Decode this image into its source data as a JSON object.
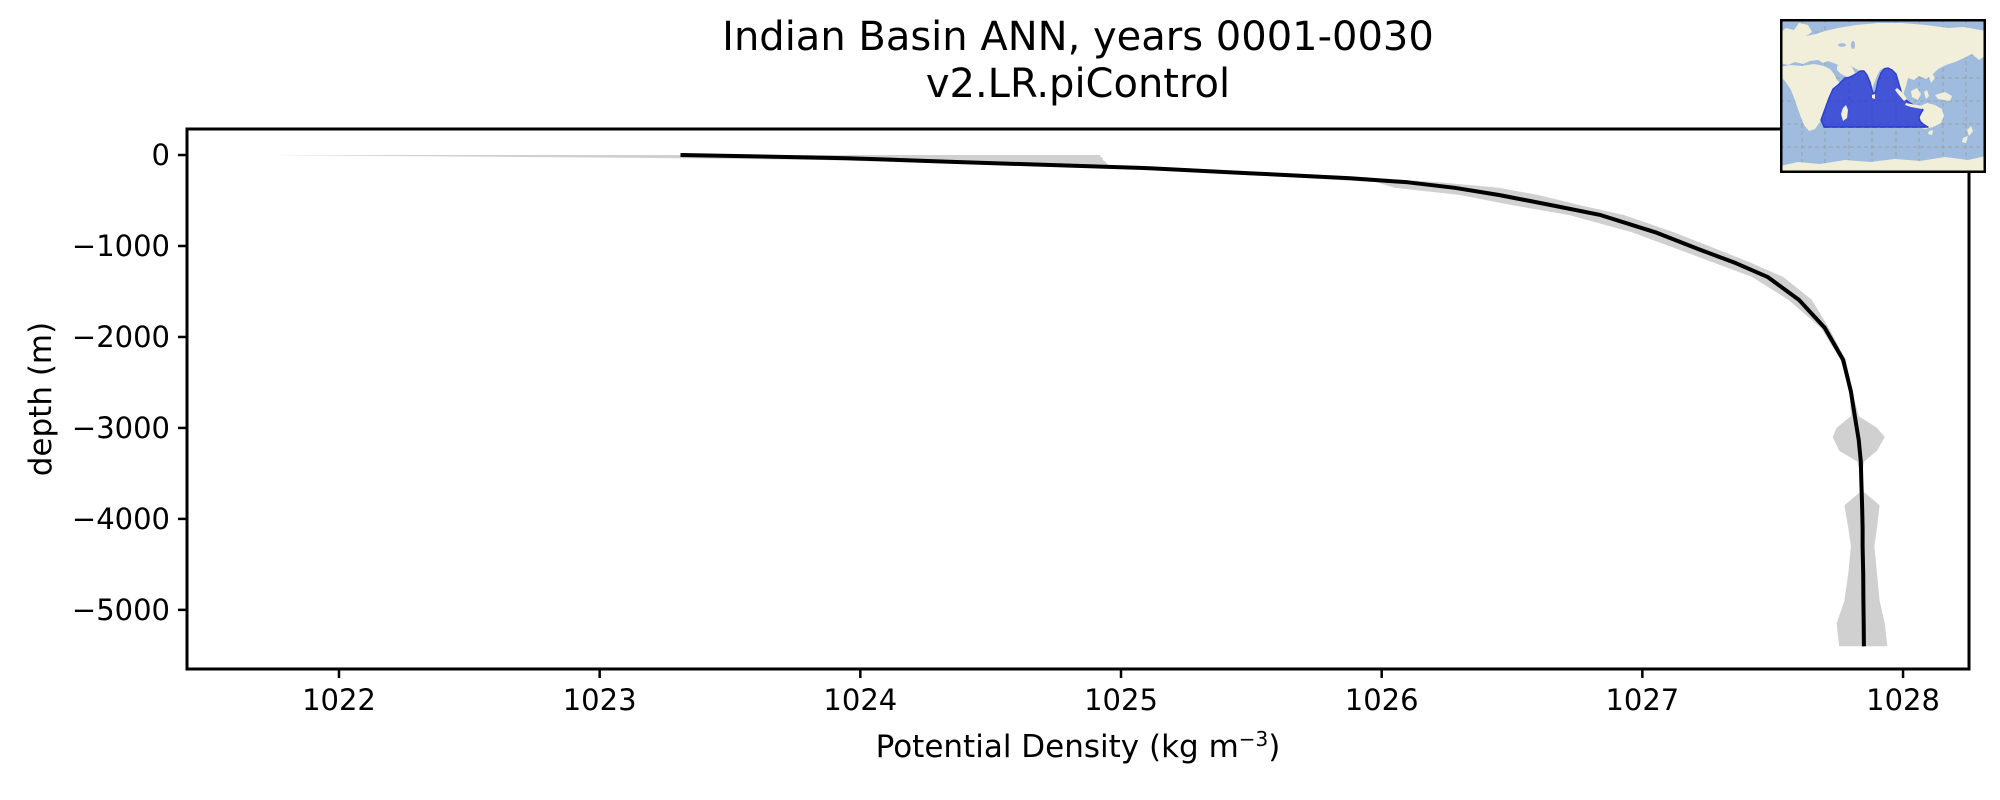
{
  "chart_data": {
    "type": "line",
    "title_line1": "Indian Basin ANN, years 0001-0030",
    "title_line2": "v2.LR.piControl",
    "xlabel_prefix": "Potential Density (kg m",
    "xlabel_sup_exponent": "−3",
    "xlabel_suffix": ")",
    "xlabel_plain": "Potential Density (kg m^-3)",
    "ylabel": "depth (m)",
    "xlim": [
      1021.417,
      1028.253
    ],
    "ylim": [
      -5650,
      286
    ],
    "grid": false,
    "legend": "none",
    "x_ticks": {
      "values": [
        1022,
        1023,
        1024,
        1025,
        1026,
        1027,
        1028
      ],
      "labels": [
        "1022",
        "1023",
        "1024",
        "1025",
        "1026",
        "1027",
        "1028"
      ]
    },
    "y_ticks": {
      "values": [
        0,
        -1000,
        -2000,
        -3000,
        -4000,
        -5000
      ],
      "labels": [
        "0",
        "−1000",
        "−2000",
        "−3000",
        "−4000",
        "−5000"
      ]
    },
    "series": [
      {
        "name": "mean potential density profile",
        "style": "solid line",
        "depth_m": [
          0,
          -15,
          -35,
          -55,
          -75,
          -110,
          -145,
          -200,
          -255,
          -300,
          -360,
          -440,
          -550,
          -660,
          -850,
          -1040,
          -1190,
          -1340,
          -1590,
          -1900,
          -2250,
          -2600,
          -2870,
          -3130,
          -3370,
          -3570,
          -3850,
          -4100,
          -4300,
          -4600,
          -4900,
          -5150,
          -5400
        ],
        "density": [
          1023.31,
          1023.6,
          1023.95,
          1024.15,
          1024.34,
          1024.73,
          1025.11,
          1025.49,
          1025.88,
          1026.1,
          1026.28,
          1026.45,
          1026.65,
          1026.84,
          1027.05,
          1027.22,
          1027.36,
          1027.48,
          1027.6,
          1027.7,
          1027.77,
          1027.8,
          1027.815,
          1027.83,
          1027.838,
          1027.84,
          1027.843,
          1027.845,
          1027.845,
          1027.847,
          1027.848,
          1027.849,
          1027.85
        ]
      },
      {
        "name": "min–max spread band",
        "style": "filled band",
        "depth_m": [
          0,
          -15,
          -35,
          -55,
          -75,
          -110,
          -145,
          -200,
          -255,
          -300,
          -360,
          -440,
          -550,
          -660,
          -850,
          -1040,
          -1190,
          -1340,
          -1590,
          -1900,
          -2250,
          -2600,
          -2870,
          -3000,
          -3100,
          -3250,
          -3370,
          -3500,
          -3700,
          -3850,
          -4100,
          -4300,
          -4600,
          -4900,
          -5150,
          -5400
        ],
        "density_min": [
          1021.74,
          1022.4,
          1023.3,
          1023.85,
          1024.1,
          1024.55,
          1024.95,
          1025.35,
          1025.72,
          1025.98,
          1026.05,
          1026.3,
          1026.5,
          1026.72,
          1026.96,
          1027.14,
          1027.28,
          1027.42,
          1027.56,
          1027.685,
          1027.76,
          1027.795,
          1027.8,
          1027.745,
          1027.73,
          1027.755,
          1027.825,
          1027.835,
          1027.838,
          1027.775,
          1027.79,
          1027.8,
          1027.79,
          1027.775,
          1027.745,
          1027.755
        ],
        "density_max": [
          1024.92,
          1024.92,
          1024.93,
          1024.93,
          1024.94,
          1024.95,
          1025.25,
          1025.62,
          1025.98,
          1026.22,
          1026.45,
          1026.6,
          1026.76,
          1026.93,
          1027.12,
          1027.29,
          1027.42,
          1027.54,
          1027.65,
          1027.715,
          1027.78,
          1027.805,
          1027.83,
          1027.9,
          1027.93,
          1027.9,
          1027.85,
          1027.845,
          1027.848,
          1027.91,
          1027.9,
          1027.89,
          1027.9,
          1027.91,
          1027.93,
          1027.94
        ]
      }
    ],
    "colors": {
      "mean_line": "#000000",
      "spread_band": "#d0d0d0",
      "axes": "#000000"
    },
    "inset_map": {
      "region": "Indian Basin",
      "ocean_color": "#9fbcdf",
      "land_color": "#f1efda",
      "highlight_fill": "#4355d6",
      "highlight_border": "#2b3cd2",
      "grid_color": "#999999",
      "grid_in_region_color": "#3a4ad0",
      "frame_color": "#000000"
    }
  }
}
